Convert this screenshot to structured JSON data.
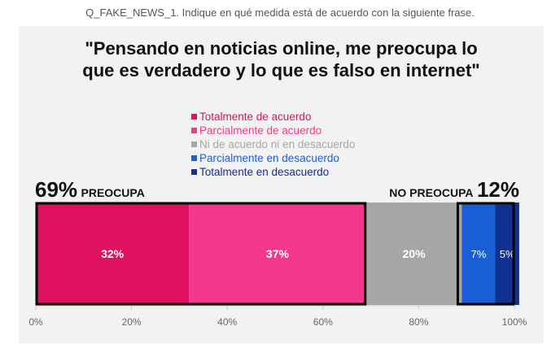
{
  "question": "Q_FAKE_NEWS_1. Indique en qué medida está de acuerdo con la siguiente frase.",
  "chart_data": {
    "type": "bar",
    "orientation": "horizontal-stacked",
    "title_line1": "\"Pensando en noticias online, me preocupa lo",
    "title_line2": "que es verdadero y lo que es falso en internet\"",
    "series": [
      {
        "name": "Totalmente de acuerdo",
        "value": 32,
        "label": "32%",
        "color": "#e0115f"
      },
      {
        "name": "Parcialmente de acuerdo",
        "value": 37,
        "label": "37%",
        "color": "#f4388c"
      },
      {
        "name": "Ni de acuerdo ni en desacuerdo",
        "value": 20,
        "label": "20%",
        "color": "#a6a6a6"
      },
      {
        "name": "Parcialmente en desacuerdo",
        "value": 7,
        "label": "7%",
        "color": "#1a5fd6"
      },
      {
        "name": "Totalmente en desacuerdo",
        "value": 5,
        "label": "5%",
        "color": "#10318f"
      }
    ],
    "xlim": [
      0,
      100
    ],
    "ticks": [
      "0%",
      "20%",
      "40%",
      "60%",
      "80%",
      "100%"
    ],
    "aggregates": {
      "left": {
        "value": "69%",
        "label": "PREOCUPA",
        "range": [
          0,
          69
        ]
      },
      "right": {
        "value": "12%",
        "label": "NO PREOCUPA",
        "range": [
          88,
          100
        ]
      }
    },
    "grid": false,
    "legend_position": "top-center"
  }
}
